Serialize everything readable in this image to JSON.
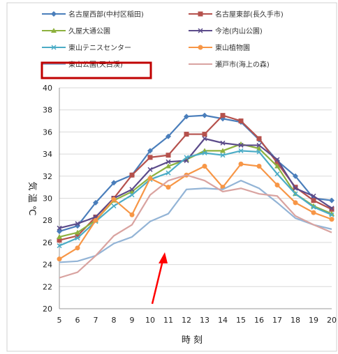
{
  "chart_data": {
    "type": "line",
    "xlabel": "時 刻",
    "ylabel": "気 温 ℃",
    "x": [
      5,
      6,
      7,
      8,
      9,
      10,
      11,
      12,
      13,
      14,
      15,
      16,
      17,
      18,
      19,
      20
    ],
    "xlim": [
      5,
      20
    ],
    "ylim": [
      20,
      40
    ],
    "y_ticks": [
      20,
      22,
      24,
      26,
      28,
      30,
      32,
      34,
      36,
      38,
      40
    ],
    "grid": true,
    "legend_position": "top",
    "highlighted_series": "東山公園(天白渓)",
    "series": [
      {
        "name": "名古屋西部(中村区稲田)",
        "color": "#4a7ebb",
        "marker": "diamond",
        "values": [
          27.0,
          27.5,
          29.6,
          31.4,
          32.1,
          34.3,
          35.6,
          37.4,
          37.5,
          37.2,
          36.9,
          35.3,
          33.4,
          32.0,
          30.0,
          29.8
        ]
      },
      {
        "name": "名古屋東部(長久手市)",
        "color": "#b5514c",
        "marker": "square",
        "values": [
          26.2,
          26.6,
          28.3,
          30.0,
          32.1,
          33.7,
          33.9,
          35.8,
          35.8,
          37.5,
          37.0,
          35.4,
          33.2,
          31.0,
          29.8,
          29.0
        ]
      },
      {
        "name": "久屋大通公園",
        "color": "#8db13e",
        "marker": "triangle",
        "values": [
          26.5,
          26.9,
          28.0,
          29.8,
          30.6,
          31.9,
          32.9,
          33.5,
          34.3,
          34.3,
          34.9,
          34.5,
          32.9,
          30.4,
          29.3,
          28.6
        ]
      },
      {
        "name": "今池(内山公園)",
        "color": "#5b4b8a",
        "marker": "x",
        "values": [
          27.3,
          27.7,
          28.3,
          30.0,
          30.8,
          32.6,
          33.3,
          33.4,
          35.4,
          35.0,
          34.8,
          34.8,
          33.5,
          30.9,
          30.2,
          29.1
        ]
      },
      {
        "name": "東山テニスセンター",
        "color": "#4bacc6",
        "marker": "x",
        "values": [
          25.7,
          26.4,
          27.9,
          29.3,
          30.3,
          31.7,
          32.3,
          33.7,
          34.1,
          33.9,
          34.3,
          34.2,
          32.2,
          30.4,
          29.2,
          28.5
        ]
      },
      {
        "name": "東山植物園",
        "color": "#f79646",
        "marker": "circle",
        "values": [
          24.5,
          25.5,
          28.0,
          29.9,
          28.5,
          31.8,
          31.0,
          32.1,
          32.9,
          31.0,
          33.1,
          32.9,
          31.2,
          29.6,
          28.7,
          28.1
        ]
      },
      {
        "name": "東山公園(天白渓)",
        "color": "#93b4d6",
        "marker": "none",
        "values": [
          24.2,
          24.3,
          24.8,
          25.9,
          26.5,
          27.9,
          28.6,
          30.8,
          30.9,
          30.8,
          31.6,
          30.9,
          29.6,
          28.2,
          27.6,
          27.2
        ]
      },
      {
        "name": "瀬戸市(海上の森)",
        "color": "#d9a3a0",
        "marker": "none",
        "values": [
          22.8,
          23.3,
          24.8,
          26.6,
          27.6,
          30.3,
          31.6,
          32.1,
          31.6,
          30.6,
          30.9,
          30.4,
          30.2,
          28.4,
          27.6,
          26.9
        ]
      }
    ]
  }
}
